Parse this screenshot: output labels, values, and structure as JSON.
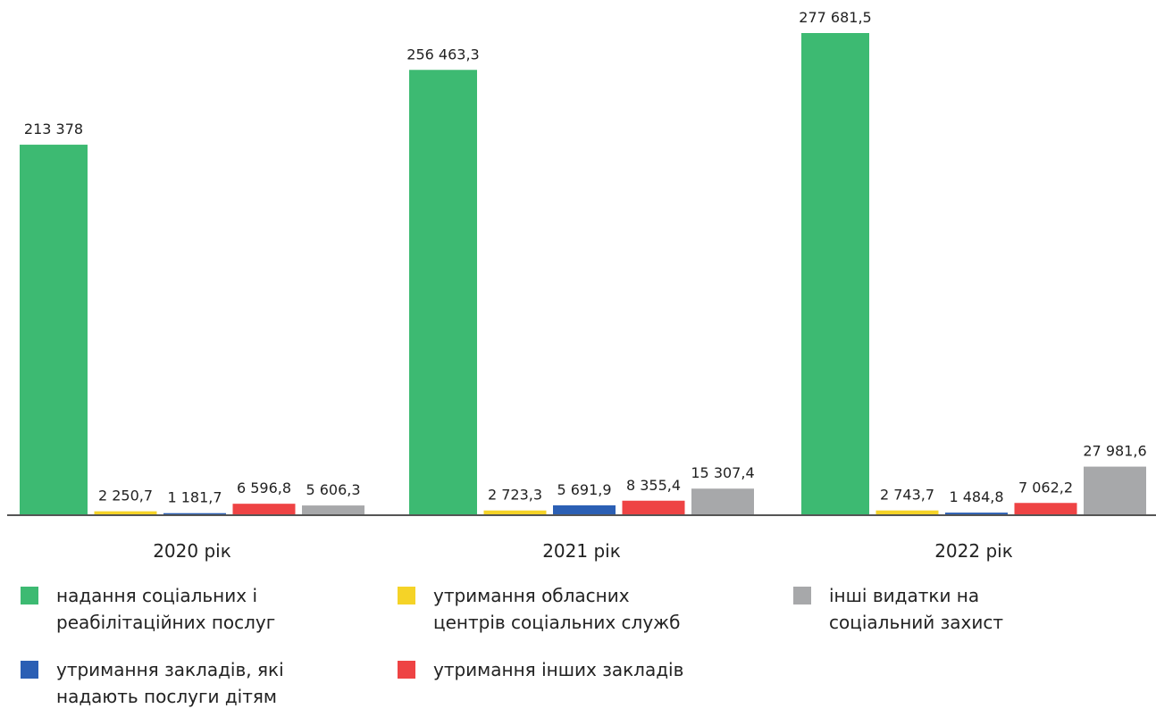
{
  "chart_data": {
    "type": "bar",
    "categories": [
      "2020 рік",
      "2021 рік",
      "2022 рік"
    ],
    "series": [
      {
        "name": "надання соціальних і реабілітаційних послуг",
        "color": "#3dba72",
        "values": [
          213378,
          256463.3,
          277681.5
        ],
        "value_labels": [
          "213 378",
          "256 463,3",
          "277 681,5"
        ]
      },
      {
        "name": "утримання обласних центрів соціальних служб",
        "color": "#f5d327",
        "values": [
          2250.7,
          2723.3,
          2743.7
        ],
        "value_labels": [
          "2 250,7",
          "2 723,3",
          "2 743,7"
        ]
      },
      {
        "name": "утримання закладів, які надають послуги дітям",
        "color": "#2b5fb4",
        "values": [
          1181.7,
          5691.9,
          1484.8
        ],
        "value_labels": [
          "1 181,7",
          "5 691,9",
          "1 484,8"
        ]
      },
      {
        "name": "утримання інших закладів",
        "color": "#ee4344",
        "values": [
          6596.8,
          8355.4,
          7062.2
        ],
        "value_labels": [
          "6 596,8",
          "8 355,4",
          "7 062,2"
        ]
      },
      {
        "name": "інші видатки на соціальний захист",
        "color": "#a7a8aa",
        "values": [
          5606.3,
          15307.4,
          27981.6
        ],
        "value_labels": [
          "5 606,3",
          "15 307,4",
          "27 981,6"
        ]
      }
    ]
  }
}
